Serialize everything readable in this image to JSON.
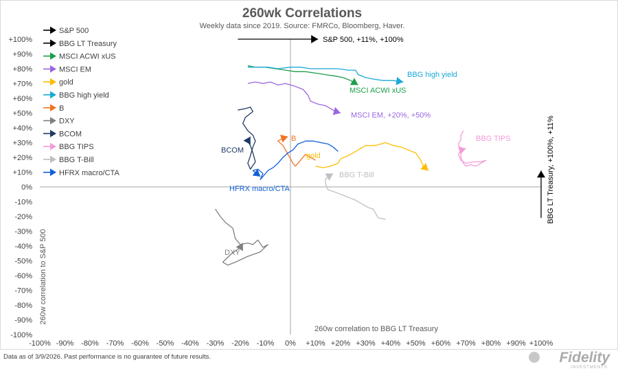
{
  "chart_data": {
    "type": "line",
    "title": "260wk Correlations",
    "subtitle": "Weekly data since 2019.  Source: FMRCo, Bloomberg, Haver.",
    "xlabel": "260w correlation to BBG LT Treasury",
    "ylabel": "260w correlation to S&P 500",
    "xlim": [
      -100,
      100
    ],
    "ylim": [
      -100,
      100
    ],
    "grid": false,
    "legend_position": "top-left",
    "x_ticks": [
      "-100%",
      "-90%",
      "-80%",
      "-70%",
      "-60%",
      "-50%",
      "-40%",
      "-30%",
      "-20%",
      "-10%",
      "0%",
      "+10%",
      "+20%",
      "+30%",
      "+40%",
      "+50%",
      "+60%",
      "+70%",
      "+80%",
      "+90%",
      "+100%"
    ],
    "y_ticks": [
      "+100%",
      "+90%",
      "+80%",
      "+70%",
      "+60%",
      "+50%",
      "+40%",
      "+30%",
      "+20%",
      "+10%",
      "0%",
      "-10%",
      "-20%",
      "-30%",
      "-40%",
      "-50%",
      "-60%",
      "-70%",
      "-80%",
      "-90%",
      "-100%"
    ],
    "annotations": {
      "sp500_arrow_label": "S&P 500, +11%, +100%",
      "treasury_arrow_label": "BBG LT Treasury, +100%, +11%"
    },
    "series": [
      {
        "name": "S&P 500",
        "color": "#000000",
        "label": "S&P 500, +11%, +100%",
        "points": [
          [
            -21,
            100
          ],
          [
            11,
            100
          ]
        ]
      },
      {
        "name": "BBG LT Treasury",
        "color": "#000000",
        "label": "BBG LT Treasury, +100%, +11%",
        "points": [
          [
            100,
            -21
          ],
          [
            100,
            11
          ]
        ]
      },
      {
        "name": "MSCI ACWI xUS",
        "color": "#1a9e4a",
        "label": "MSCI ACWI xUS",
        "points": [
          [
            -17,
            82
          ],
          [
            -14,
            81
          ],
          [
            -10,
            81
          ],
          [
            -6,
            80
          ],
          [
            -2,
            79
          ],
          [
            2,
            78
          ],
          [
            6,
            78
          ],
          [
            10,
            77
          ],
          [
            14,
            76
          ],
          [
            18,
            75
          ],
          [
            21,
            74
          ],
          [
            24,
            72
          ],
          [
            27,
            69
          ]
        ]
      },
      {
        "name": "MSCI EM",
        "color": "#9966e0",
        "label": "MSCI EM, +20%, +50%",
        "points": [
          [
            -17,
            70
          ],
          [
            -14,
            71
          ],
          [
            -11,
            70
          ],
          [
            -8,
            71
          ],
          [
            -5,
            69
          ],
          [
            -2,
            70
          ],
          [
            2,
            68
          ],
          [
            5,
            66
          ],
          [
            7,
            62
          ],
          [
            8,
            58
          ],
          [
            11,
            56
          ],
          [
            14,
            55
          ],
          [
            16,
            53
          ],
          [
            18,
            51
          ],
          [
            20,
            50
          ]
        ]
      },
      {
        "name": "gold",
        "color": "#ffbb00",
        "label": "gold",
        "points": [
          [
            10,
            14
          ],
          [
            13,
            13
          ],
          [
            16,
            14
          ],
          [
            19,
            16
          ],
          [
            20,
            19
          ],
          [
            24,
            22
          ],
          [
            27,
            25
          ],
          [
            30,
            28
          ],
          [
            34,
            28
          ],
          [
            38,
            30
          ],
          [
            41,
            28
          ],
          [
            44,
            27
          ],
          [
            47,
            25
          ],
          [
            50,
            23
          ],
          [
            52,
            18
          ],
          [
            53,
            14
          ],
          [
            55,
            11
          ]
        ]
      },
      {
        "name": "BBG high yield",
        "color": "#1aa8d8",
        "label": "BBG high yield",
        "points": [
          [
            -17,
            81
          ],
          [
            -13,
            81
          ],
          [
            -9,
            81
          ],
          [
            -5,
            80
          ],
          [
            0,
            81
          ],
          [
            4,
            81
          ],
          [
            8,
            80
          ],
          [
            12,
            80
          ],
          [
            16,
            80
          ],
          [
            19,
            80
          ],
          [
            23,
            79
          ],
          [
            26,
            79
          ],
          [
            27,
            76
          ],
          [
            30,
            74
          ],
          [
            33,
            73
          ],
          [
            37,
            72
          ],
          [
            41,
            72
          ],
          [
            45,
            71
          ]
        ]
      },
      {
        "name": "B",
        "color": "#f27321",
        "label": "B",
        "points": [
          [
            10,
            18
          ],
          [
            8,
            20
          ],
          [
            6,
            22
          ],
          [
            4,
            18
          ],
          [
            2,
            14
          ],
          [
            1,
            16
          ],
          [
            -1,
            22
          ],
          [
            -3,
            28
          ],
          [
            -5,
            31
          ],
          [
            -3,
            33
          ],
          [
            -1,
            34
          ]
        ]
      },
      {
        "name": "DXY",
        "color": "#808080",
        "label": "DXY",
        "points": [
          [
            -30,
            -15
          ],
          [
            -28,
            -20
          ],
          [
            -26,
            -24
          ],
          [
            -23,
            -28
          ],
          [
            -22,
            -35
          ],
          [
            -20,
            -39
          ],
          [
            -17,
            -38
          ],
          [
            -15,
            -39
          ],
          [
            -13,
            -36
          ],
          [
            -11,
            -41
          ],
          [
            -9,
            -39
          ],
          [
            -12,
            -44
          ],
          [
            -17,
            -47
          ],
          [
            -22,
            -51
          ],
          [
            -25,
            -53
          ],
          [
            -27,
            -51
          ],
          [
            -24,
            -46
          ],
          [
            -20,
            -41
          ],
          [
            -19,
            -38
          ]
        ]
      },
      {
        "name": "BCOM",
        "color": "#1f3864",
        "label": "BCOM",
        "points": [
          [
            -21,
            52
          ],
          [
            -18,
            53
          ],
          [
            -16,
            54
          ],
          [
            -15,
            51
          ],
          [
            -18,
            47
          ],
          [
            -19,
            43
          ],
          [
            -17,
            38
          ],
          [
            -15,
            35
          ],
          [
            -14,
            31
          ],
          [
            -15,
            27
          ],
          [
            -16,
            21
          ],
          [
            -17,
            16
          ],
          [
            -16,
            12
          ],
          [
            -14,
            17
          ],
          [
            -15,
            23
          ],
          [
            -16,
            28
          ],
          [
            -17,
            31
          ],
          [
            -16,
            34
          ]
        ]
      },
      {
        "name": "BBG TIPS",
        "color": "#f39bd9",
        "label": "BBG TIPS",
        "points": [
          [
            69,
            38
          ],
          [
            68,
            35
          ],
          [
            68,
            32
          ],
          [
            67,
            29
          ],
          [
            68,
            24
          ],
          [
            68,
            20
          ],
          [
            69,
            16
          ],
          [
            70,
            14
          ],
          [
            72,
            15
          ],
          [
            74,
            14
          ],
          [
            76,
            16
          ],
          [
            78,
            18
          ],
          [
            76,
            17
          ],
          [
            73,
            17
          ],
          [
            70,
            16
          ],
          [
            68,
            18
          ],
          [
            67,
            22
          ],
          [
            68,
            25
          ],
          [
            70,
            26
          ]
        ]
      },
      {
        "name": "BBG T-Bill",
        "color": "#bfbfbf",
        "label": "BBG T-Bill",
        "points": [
          [
            38,
            -22
          ],
          [
            35,
            -21
          ],
          [
            34,
            -18
          ],
          [
            33,
            -15
          ],
          [
            31,
            -14
          ],
          [
            29,
            -12
          ],
          [
            26,
            -9
          ],
          [
            23,
            -7
          ],
          [
            20,
            -5
          ],
          [
            17,
            -3
          ],
          [
            15,
            -2
          ],
          [
            14,
            2
          ],
          [
            14,
            5
          ],
          [
            15,
            7
          ],
          [
            17,
            9
          ]
        ]
      },
      {
        "name": "HFRX macro/CTA",
        "color": "#1060d8",
        "label": "HFRX macro/CTA",
        "points": [
          [
            19,
            24
          ],
          [
            17,
            27
          ],
          [
            15,
            29
          ],
          [
            12,
            30
          ],
          [
            9,
            31
          ],
          [
            6,
            31
          ],
          [
            3,
            29
          ],
          [
            1,
            25
          ],
          [
            -1,
            23
          ],
          [
            -3,
            20
          ],
          [
            -5,
            16
          ],
          [
            -7,
            13
          ],
          [
            -9,
            11
          ],
          [
            -11,
            7
          ],
          [
            -12,
            5
          ],
          [
            -11,
            9
          ],
          [
            -13,
            12
          ],
          [
            -15,
            11
          ],
          [
            -12,
            7
          ]
        ]
      }
    ]
  },
  "footer": {
    "disclaimer": "Data as of 3/9/2026. Past performance is no guarantee of future results.",
    "logo": "Fidelity",
    "logo_sub": "INVESTMENTS"
  }
}
